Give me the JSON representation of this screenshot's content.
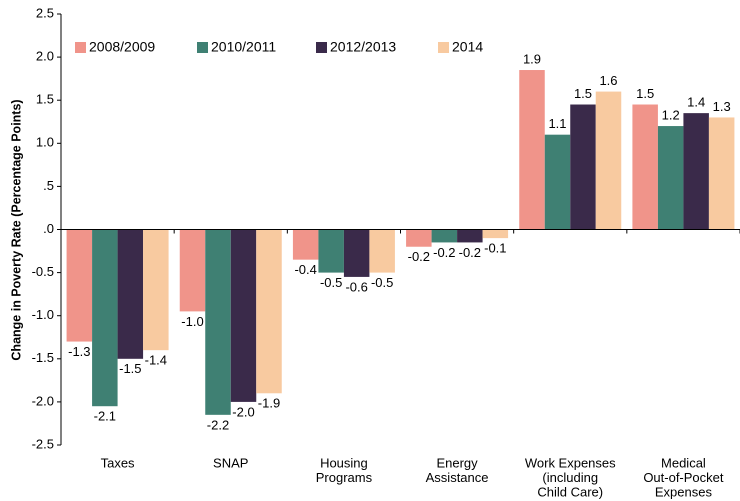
{
  "chart_data": {
    "type": "bar",
    "y_label": "Change in Poverty Rate (Percentage Points)",
    "categories": [
      [
        "Taxes"
      ],
      [
        "SNAP"
      ],
      [
        "Housing",
        "Programs"
      ],
      [
        "Energy",
        "Assistance"
      ],
      [
        "Work Expenses",
        "(including",
        "Child Care)"
      ],
      [
        "Medical",
        "Out-of-Pocket",
        "Expenses"
      ]
    ],
    "series": [
      {
        "name": "2008/2009",
        "color": "#f0948a",
        "values": [
          -1.3,
          -0.95,
          -0.35,
          -0.2,
          1.85,
          1.45
        ],
        "value_labels": [
          "-1.3",
          "-1.0",
          "-0.4",
          "-0.2",
          "1.9",
          "1.5"
        ]
      },
      {
        "name": "2010/2011",
        "color": "#3f8073",
        "values": [
          -2.05,
          -2.15,
          -0.5,
          -0.15,
          1.1,
          1.2
        ],
        "value_labels": [
          "-2.1",
          "-2.2",
          "-0.5",
          "-0.2",
          "1.1",
          "1.2"
        ]
      },
      {
        "name": "2012/2013",
        "color": "#3a2a4a",
        "values": [
          -1.5,
          -2.0,
          -0.55,
          -0.15,
          1.45,
          1.35
        ],
        "value_labels": [
          "-1.5",
          "-2.0",
          "-0.6",
          "-0.2",
          "1.5",
          "1.4"
        ]
      },
      {
        "name": "2014",
        "color": "#f8caa0",
        "values": [
          -1.4,
          -1.9,
          -0.5,
          -0.1,
          1.6,
          1.3
        ],
        "value_labels": [
          "-1.4",
          "-1.9",
          "-0.5",
          "-0.1",
          "1.6",
          "1.3"
        ]
      }
    ],
    "ylim": [
      -2.5,
      2.5
    ],
    "yticks": [
      2.5,
      {
        "value": 2.0,
        "label": "2.0"
      },
      1.5,
      {
        "value": 1.0,
        "label": "1.0"
      },
      {
        "value": 0.5,
        "label": ".5"
      },
      {
        "value": 0,
        "label": ".0"
      },
      -0.5,
      {
        "value": -1.0,
        "label": "-1.0"
      },
      -1.5,
      {
        "value": -2.0,
        "label": "-2.0"
      },
      -2.5
    ],
    "legend": "top-left"
  }
}
